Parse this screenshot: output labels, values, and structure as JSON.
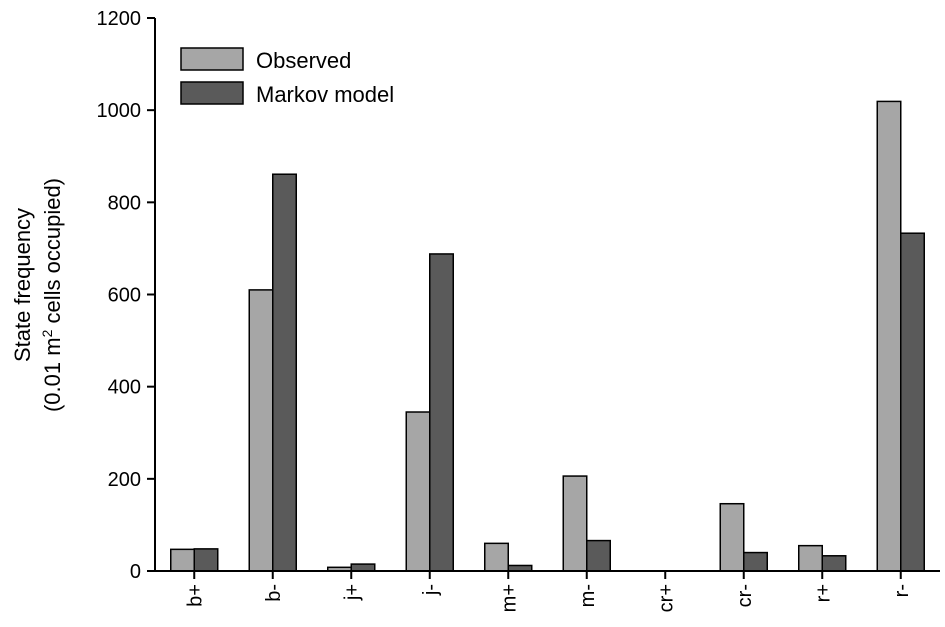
{
  "chart_data": {
    "type": "bar",
    "title": "",
    "xlabel": "",
    "ylabel_line1": "State frequency",
    "ylabel_line2_prefix": "(0.01 m",
    "ylabel_line2_sup": "2",
    "ylabel_line2_suffix": " cells occupied)",
    "ylim": [
      0,
      1200
    ],
    "yticks": [
      "0",
      "200",
      "400",
      "600",
      "800",
      "1000",
      "1200"
    ],
    "grid": false,
    "legend_position": "top-left",
    "categories": [
      "b+",
      "b-",
      "j+",
      "j-",
      "m+",
      "m-",
      "cr+",
      "cr-",
      "r+",
      "r-"
    ],
    "series": [
      {
        "name": "Observed",
        "color": "#a6a6a6",
        "values": [
          47,
          610,
          8,
          345,
          60,
          206,
          0,
          146,
          55,
          1019
        ]
      },
      {
        "name": "Markov model",
        "color": "#5a5a5a",
        "values": [
          48,
          861,
          15,
          688,
          12,
          66,
          0,
          40,
          33,
          733
        ]
      }
    ]
  }
}
